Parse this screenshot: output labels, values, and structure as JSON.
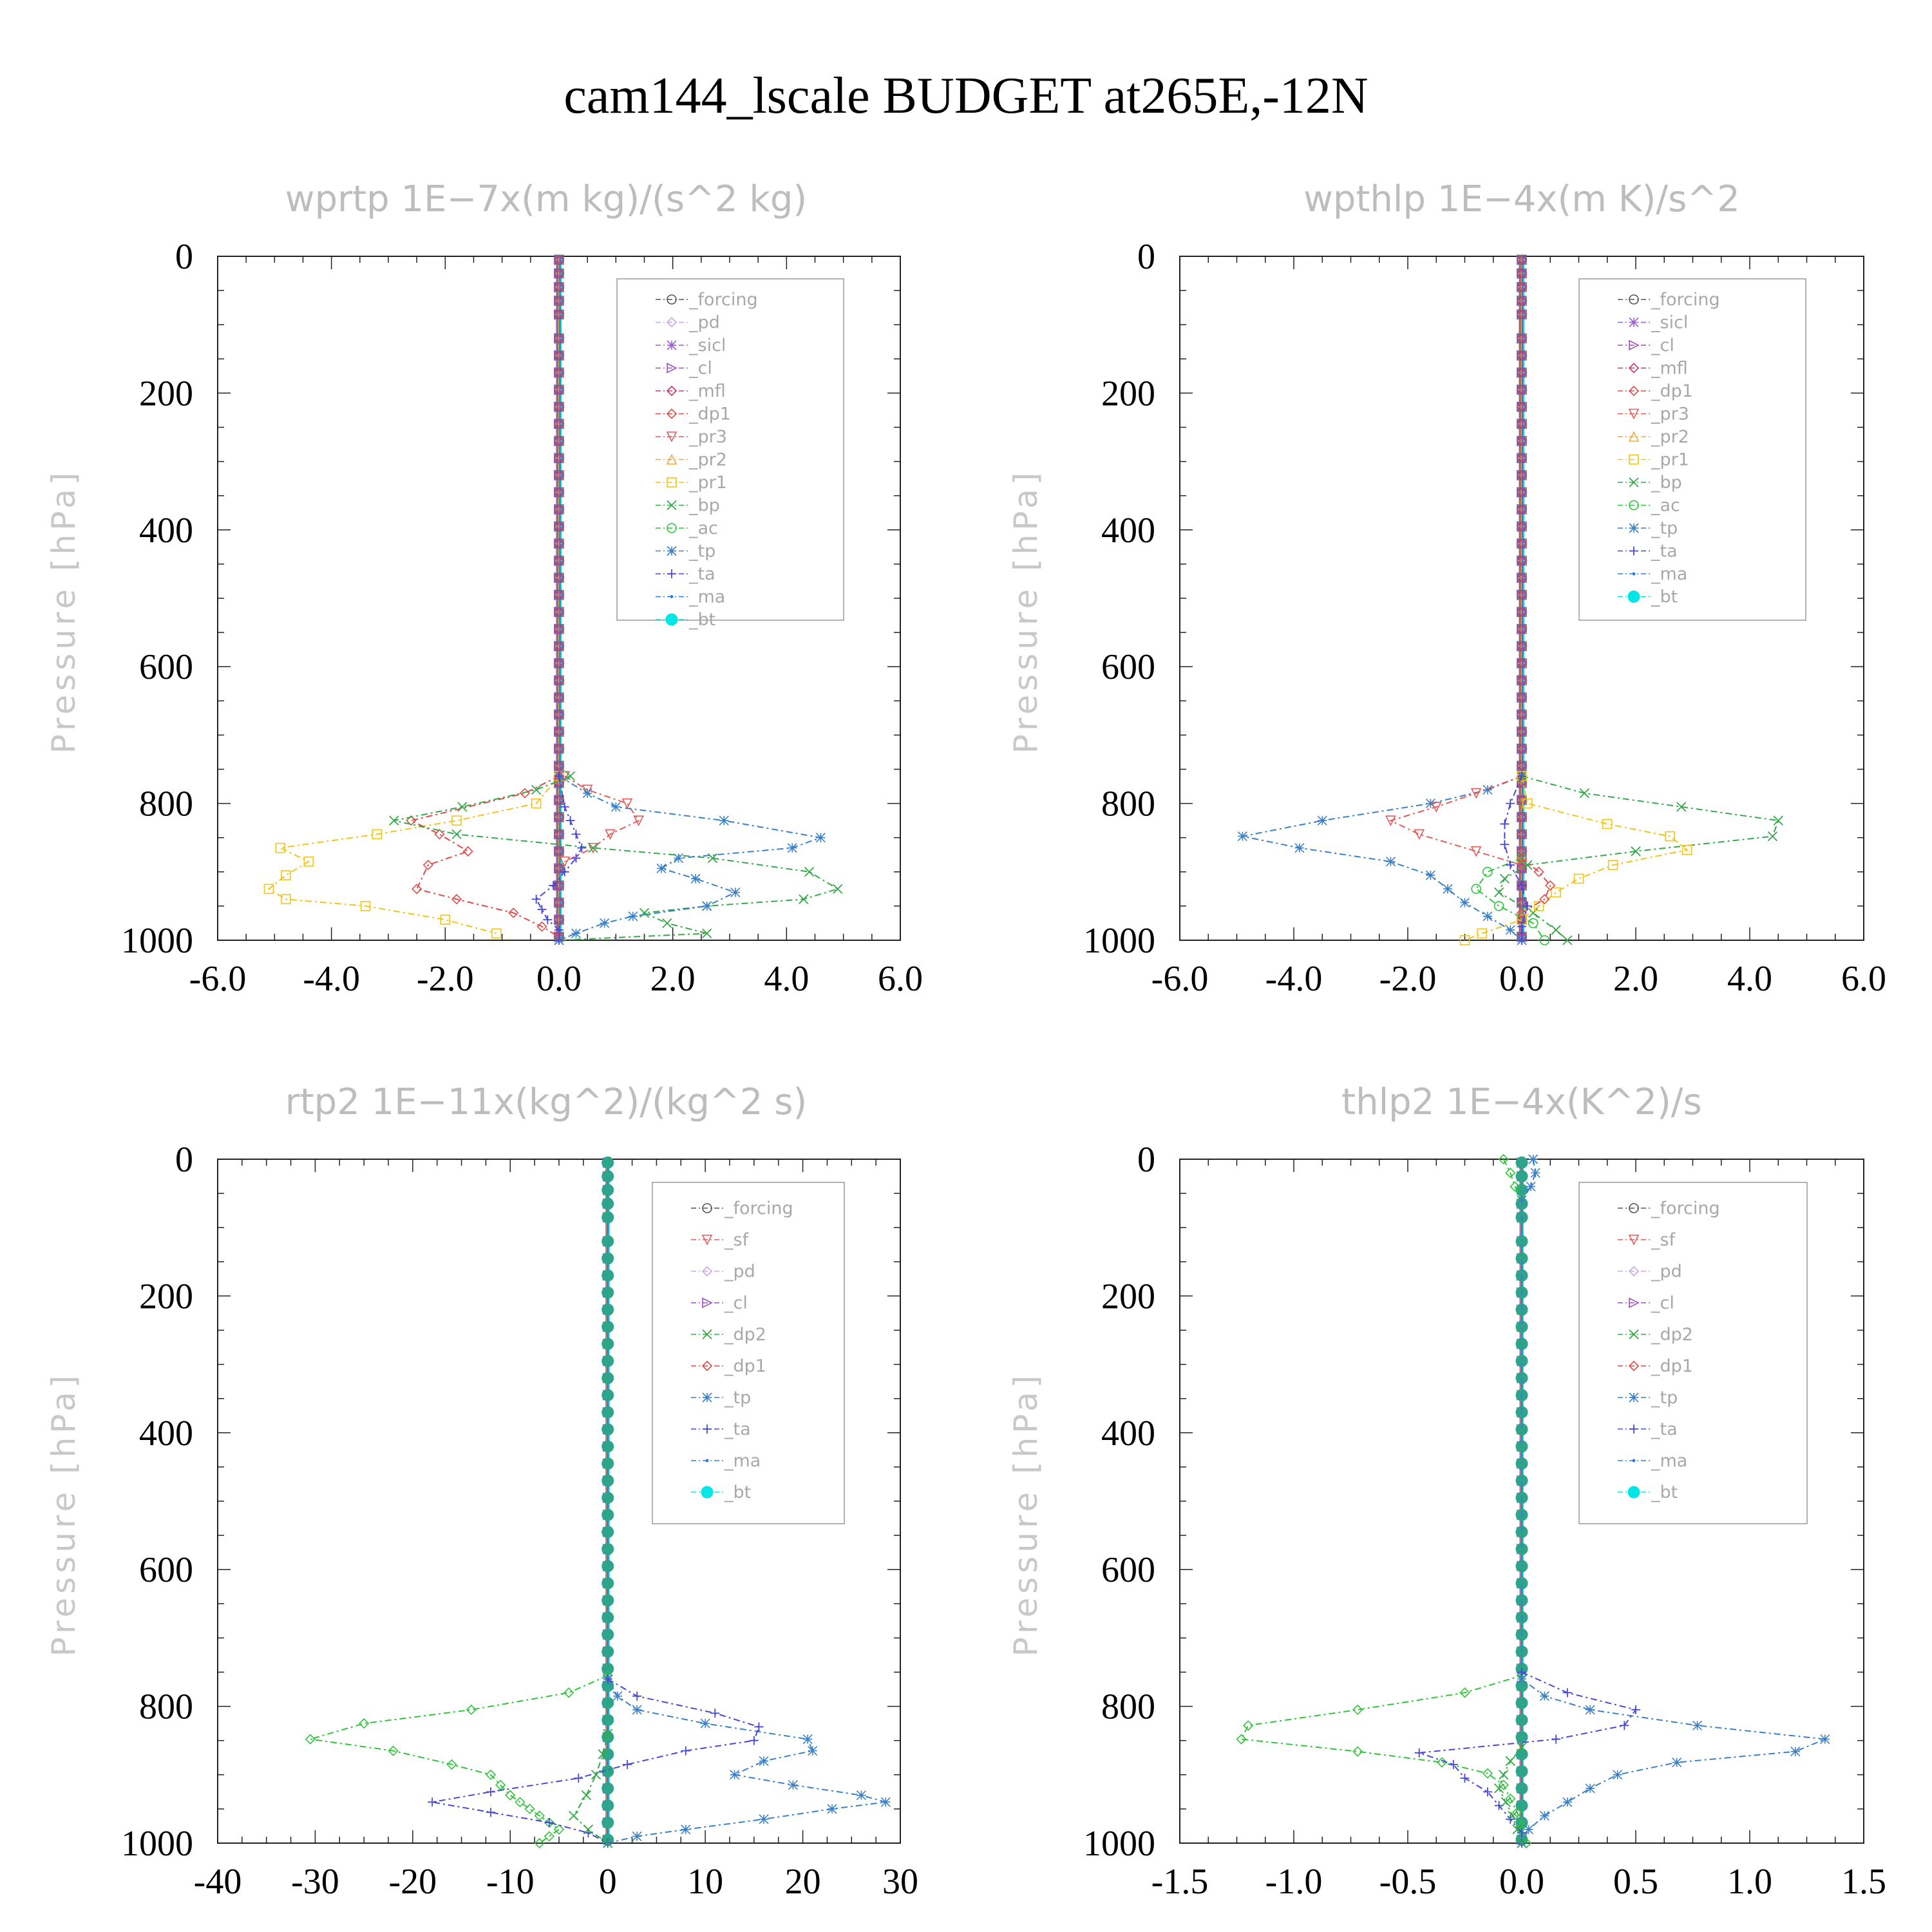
{
  "title": "cam144_lscale  BUDGET at265E,-12N",
  "chart_data": [
    {
      "type": "line",
      "title": "wprtp   1E−7x(m kg)/(s^2 kg)",
      "ylabel": "Pressure [hPa]",
      "xlim": [
        -6,
        6
      ],
      "ylim": [
        1000,
        0
      ],
      "xticks": [
        "-6.0",
        "-4.0",
        "-2.0",
        "0.0",
        "2.0",
        "4.0",
        "6.0"
      ],
      "yticks": [
        "0",
        "200",
        "400",
        "600",
        "800",
        "1000"
      ],
      "legend": [
        "_forcing",
        "_pd",
        "_sicl",
        "_cl",
        "_mfl",
        "_dp1",
        "_pr3",
        "_pr2",
        "_pr1",
        "_bp",
        "_ac",
        "_tp",
        "_ta",
        "_ma",
        "_bt"
      ],
      "series": [
        {
          "name": "_pr1",
          "color": "#f2c318",
          "pressure": [
            760,
            800,
            825,
            845,
            865,
            885,
            905,
            925,
            940,
            950,
            970,
            990
          ],
          "values": [
            0,
            -0.4,
            -1.8,
            -3.2,
            -4.9,
            -4.4,
            -4.8,
            -5.1,
            -4.8,
            -3.4,
            -2.0,
            -1.1
          ]
        },
        {
          "name": "_dp1",
          "color": "#e04a4a",
          "pressure": [
            760,
            785,
            825,
            845,
            870,
            890,
            925,
            940,
            960,
            980,
            995
          ],
          "values": [
            0,
            -0.6,
            -2.6,
            -2.1,
            -1.6,
            -2.3,
            -2.5,
            -1.8,
            -0.8,
            -0.3,
            0
          ]
        },
        {
          "name": "_pr3",
          "color": "#e65a5a",
          "pressure": [
            760,
            780,
            800,
            825,
            845,
            865,
            885
          ],
          "values": [
            0.1,
            0.5,
            1.2,
            1.4,
            0.9,
            0.6,
            0.1
          ]
        },
        {
          "name": "_bp",
          "color": "#36a84a",
          "pressure": [
            760,
            780,
            805,
            825,
            845,
            865,
            880,
            900,
            925,
            940,
            950,
            960,
            975,
            990,
            1000
          ],
          "values": [
            0.2,
            -0.4,
            -1.7,
            -2.9,
            -1.8,
            0.6,
            2.7,
            4.4,
            4.9,
            4.3,
            2.6,
            1.5,
            1.9,
            2.6,
            0
          ]
        },
        {
          "name": "_tp",
          "color": "#3a80c8",
          "pressure": [
            760,
            785,
            805,
            825,
            850,
            865,
            880,
            895,
            910,
            930,
            950,
            965,
            975,
            990,
            1000
          ],
          "values": [
            0,
            0.5,
            1.0,
            2.9,
            4.6,
            4.1,
            2.1,
            1.8,
            2.4,
            3.1,
            2.6,
            1.3,
            0.8,
            0.3,
            0
          ]
        },
        {
          "name": "_ta",
          "color": "#4848d8",
          "pressure": [
            760,
            805,
            825,
            845,
            865,
            880,
            900,
            920,
            940,
            955,
            970,
            985,
            1000
          ],
          "values": [
            0,
            0.1,
            0.2,
            0.3,
            0.4,
            0.3,
            0.1,
            -0.1,
            -0.4,
            -0.3,
            -0.2,
            0,
            0
          ]
        }
      ]
    },
    {
      "type": "line",
      "title": "wpthlp   1E−4x(m K)/s^2",
      "ylabel": "Pressure [hPa]",
      "xlim": [
        -6,
        6
      ],
      "ylim": [
        1000,
        0
      ],
      "xticks": [
        "-6.0",
        "-4.0",
        "-2.0",
        "0.0",
        "2.0",
        "4.0",
        "6.0"
      ],
      "yticks": [
        "0",
        "200",
        "400",
        "600",
        "800",
        "1000"
      ],
      "legend": [
        "_forcing",
        "_sicl",
        "_cl",
        "_mfl",
        "_dp1",
        "_pr3",
        "_pr2",
        "_pr1",
        "_bp",
        "_ac",
        "_tp",
        "_ta",
        "_ma",
        "_bt"
      ],
      "series": [
        {
          "name": "_tp",
          "color": "#3a80c8",
          "pressure": [
            760,
            780,
            800,
            825,
            848,
            865,
            885,
            905,
            925,
            945,
            965,
            985,
            1000
          ],
          "values": [
            0,
            -0.6,
            -1.6,
            -3.5,
            -4.9,
            -3.9,
            -2.3,
            -1.6,
            -1.3,
            -1.0,
            -0.6,
            -0.2,
            0
          ]
        },
        {
          "name": "_pr3",
          "color": "#e65a5a",
          "pressure": [
            760,
            785,
            805,
            825,
            845,
            870,
            890
          ],
          "values": [
            0,
            -0.8,
            -1.5,
            -2.3,
            -1.8,
            -0.8,
            0
          ]
        },
        {
          "name": "_bp",
          "color": "#36a84a",
          "pressure": [
            760,
            785,
            805,
            825,
            848,
            870,
            890,
            910,
            930,
            960,
            985,
            1000
          ],
          "values": [
            0,
            1.1,
            2.8,
            4.5,
            4.4,
            2.0,
            0.1,
            -0.3,
            -0.4,
            0.2,
            0.6,
            0.8
          ]
        },
        {
          "name": "_pr1",
          "color": "#f2c318",
          "pressure": [
            760,
            800,
            830,
            848,
            868,
            890,
            910,
            930,
            950,
            970,
            990,
            1000
          ],
          "values": [
            0,
            0.1,
            1.5,
            2.6,
            2.9,
            1.6,
            1.0,
            0.6,
            0.3,
            0,
            -0.7,
            -1.0
          ]
        },
        {
          "name": "_ac",
          "color": "#2fc53a",
          "pressure": [
            880,
            900,
            925,
            950,
            975,
            1000
          ],
          "values": [
            0,
            -0.6,
            -0.8,
            -0.4,
            0.2,
            0.4
          ]
        },
        {
          "name": "_dp1",
          "color": "#e04a4a",
          "pressure": [
            880,
            900,
            920,
            940,
            960
          ],
          "values": [
            0,
            0.3,
            0.5,
            0.4,
            0
          ]
        },
        {
          "name": "_ta",
          "color": "#4848d8",
          "pressure": [
            760,
            800,
            830,
            860,
            890,
            920,
            950,
            980,
            1000
          ],
          "values": [
            0,
            -0.2,
            -0.3,
            -0.3,
            -0.2,
            0,
            0.1,
            0,
            0
          ]
        }
      ]
    },
    {
      "type": "line",
      "title": "rtp2   1E−11x(kg^2)/(kg^2 s)",
      "ylabel": "Pressure [hPa]",
      "xlim": [
        -40,
        30
      ],
      "ylim": [
        1000,
        0
      ],
      "xticks": [
        "-40",
        "-30",
        "-20",
        "-10",
        "0",
        "10",
        "20",
        "30"
      ],
      "yticks": [
        "0",
        "200",
        "400",
        "600",
        "800",
        "1000"
      ],
      "legend": [
        "_forcing",
        "_sf",
        "_pd",
        "_cl",
        "_dp2",
        "_dp1",
        "_tp",
        "_ta",
        "_ma",
        "_bt"
      ],
      "series": [
        {
          "name": "_dp1",
          "color": "#2fc53a",
          "pressure": [
            755,
            780,
            805,
            825,
            848,
            865,
            885,
            900,
            915,
            930,
            940,
            950,
            960,
            970,
            980,
            990,
            1000
          ],
          "values": [
            0,
            -4,
            -14,
            -25,
            -30.5,
            -22,
            -16,
            -12,
            -11,
            -10,
            -9,
            -8,
            -7,
            -6,
            -5,
            -6,
            -7
          ]
        },
        {
          "name": "_tp",
          "color": "#3a80c8",
          "pressure": [
            760,
            785,
            805,
            825,
            848,
            865,
            880,
            900,
            915,
            930,
            940,
            950,
            965,
            980,
            990,
            1000
          ],
          "values": [
            0,
            1,
            3,
            10,
            20.5,
            21,
            16,
            13,
            19,
            26,
            28.5,
            23,
            16,
            8,
            3,
            0
          ]
        },
        {
          "name": "_ta",
          "color": "#4848d8",
          "pressure": [
            760,
            785,
            810,
            830,
            850,
            865,
            885,
            905,
            925,
            940,
            955,
            970,
            985,
            1000
          ],
          "values": [
            0,
            3,
            11,
            15.5,
            15,
            8,
            2,
            -3,
            -12,
            -18,
            -12,
            -6,
            -2,
            0
          ]
        },
        {
          "name": "_dp2",
          "color": "#36a84a",
          "pressure": [
            840,
            870,
            900,
            930,
            960,
            980,
            1000
          ],
          "values": [
            0,
            -0.5,
            -1.2,
            -2.2,
            -3.5,
            -2,
            0
          ]
        }
      ]
    },
    {
      "type": "line",
      "title": "thlp2   1E−4x(K^2)/s",
      "ylabel": "Pressure [hPa]",
      "xlim": [
        -1.5,
        1.5
      ],
      "ylim": [
        1000,
        0
      ],
      "xticks": [
        "-1.5",
        "-1.0",
        "-0.5",
        "0.0",
        "0.5",
        "1.0",
        "1.5"
      ],
      "yticks": [
        "0",
        "200",
        "400",
        "600",
        "800",
        "1000"
      ],
      "legend": [
        "_forcing",
        "_sf",
        "_pd",
        "_cl",
        "_dp2",
        "_dp1",
        "_tp",
        "_ta",
        "_ma",
        "_bt"
      ],
      "series": [
        {
          "name": "_dp1",
          "color": "#2fc53a",
          "pressure": [
            0,
            20,
            40,
            60,
            755,
            780,
            805,
            828,
            848,
            866,
            882,
            898,
            915,
            935,
            955,
            975,
            1000
          ],
          "values": [
            -0.08,
            -0.05,
            -0.03,
            0,
            0,
            -0.25,
            -0.72,
            -1.2,
            -1.23,
            -0.72,
            -0.35,
            -0.15,
            -0.08,
            -0.05,
            -0.02,
            0,
            0.02
          ]
        },
        {
          "name": "_tp",
          "color": "#3a80c8",
          "pressure": [
            0,
            20,
            40,
            60,
            760,
            785,
            805,
            828,
            848,
            866,
            882,
            900,
            920,
            940,
            960,
            980,
            1000
          ],
          "values": [
            0.05,
            0.06,
            0.04,
            0,
            0,
            0.1,
            0.3,
            0.77,
            1.33,
            1.2,
            0.68,
            0.42,
            0.3,
            0.2,
            0.1,
            0.03,
            0
          ]
        },
        {
          "name": "_ta",
          "color": "#4848d8",
          "pressure": [
            750,
            780,
            805,
            828,
            848,
            868,
            885,
            905,
            925,
            945,
            965,
            985,
            1000
          ],
          "values": [
            0,
            0.2,
            0.5,
            0.45,
            0.15,
            -0.45,
            -0.3,
            -0.25,
            -0.15,
            -0.1,
            -0.05,
            0,
            0
          ]
        },
        {
          "name": "_dp2",
          "color": "#36a84a",
          "pressure": [
            860,
            880,
            900,
            920,
            940,
            960,
            980,
            1000
          ],
          "values": [
            0,
            -0.05,
            -0.08,
            -0.1,
            -0.07,
            -0.04,
            -0.02,
            0
          ]
        }
      ]
    }
  ],
  "colors": {
    "_forcing": "#555555",
    "_pd": "#c9a8e8",
    "_sicl": "#9a5fd0",
    "_cl": "#a04fc0",
    "_mfl": "#c8366e",
    "_dp1": "#e04a4a",
    "_pr3": "#e65a5a",
    "_pr2": "#f0a940",
    "_pr1": "#f2c318",
    "_bp": "#36a84a",
    "_ac": "#2fc53a",
    "_tp": "#3a80c8",
    "_ta": "#4848d8",
    "_ma": "#2f7fe0",
    "_bt": "#00e5e5",
    "_sf": "#e65a5a",
    "_dp2": "#36a84a"
  }
}
